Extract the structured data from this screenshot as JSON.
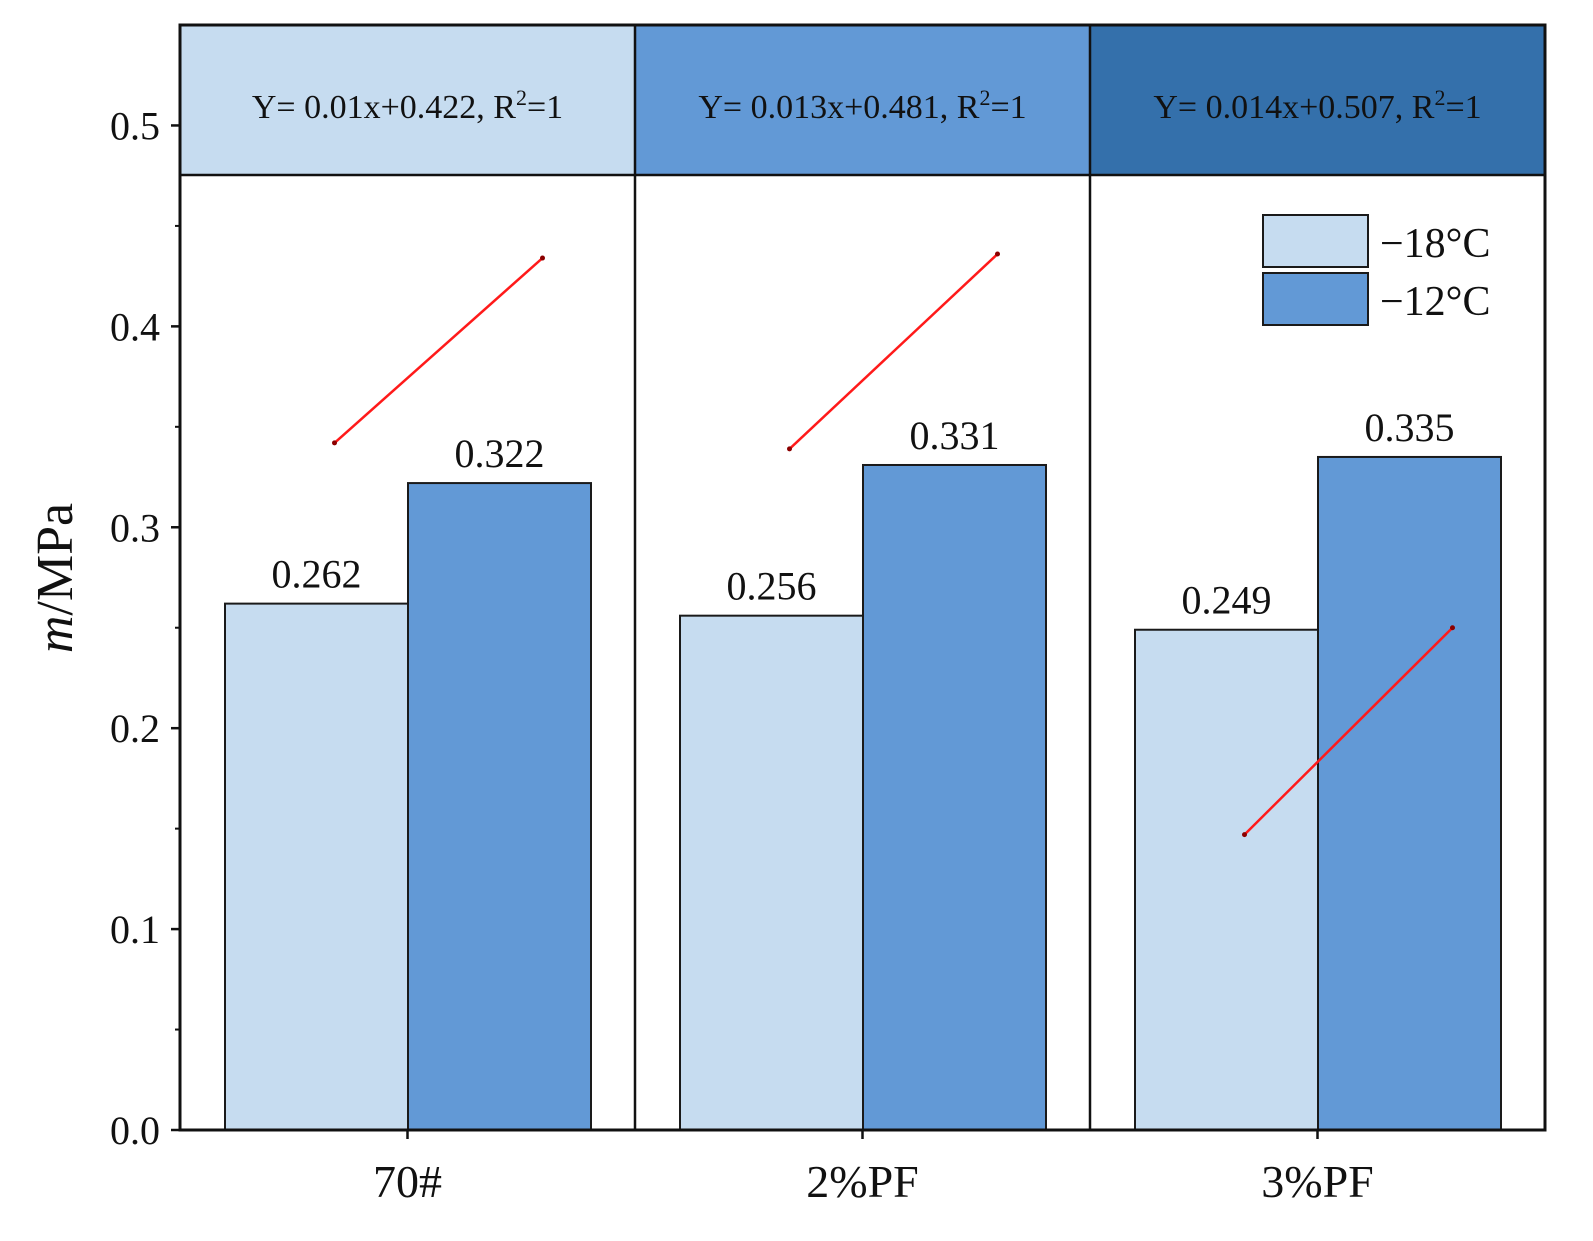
{
  "chart_data": {
    "type": "bar",
    "title": "",
    "xlabel": "",
    "ylabel_italic": "m",
    "ylabel_rest": "/MPa",
    "ylim": [
      0,
      0.55
    ],
    "yticks": [
      "0.0",
      "0.1",
      "0.2",
      "0.3",
      "0.4",
      "0.5"
    ],
    "categories": [
      "70#",
      "2%PF",
      "3%PF"
    ],
    "series": [
      {
        "name": "−18°C",
        "color": "#c6dcf0",
        "values": [
          0.262,
          0.256,
          0.249
        ],
        "labels": [
          "0.262",
          "0.256",
          "0.249"
        ]
      },
      {
        "name": "−12°C",
        "color": "#6299d6",
        "values": [
          0.322,
          0.331,
          0.335
        ],
        "labels": [
          "0.322",
          "0.331",
          "0.335"
        ]
      }
    ],
    "header_colors": [
      "#c6dcf0",
      "#6299d6",
      "#3470ab"
    ],
    "equations": [
      {
        "main": "Y= 0.01x+0.422, R",
        "sup": "2",
        "tail": "=1"
      },
      {
        "main": "Y= 0.013x+0.481, R",
        "sup": "2",
        "tail": "=1"
      },
      {
        "main": "Y= 0.014x+0.507, R",
        "sup": "2",
        "tail": "=1"
      }
    ],
    "fit_lines": [
      {
        "color": "#ff1a1a",
        "y_start": 0.342,
        "y_end": 0.434
      },
      {
        "color": "#ff1a1a",
        "y_start": 0.339,
        "y_end": 0.436
      },
      {
        "color": "#ff1a1a",
        "y_start": 0.147,
        "y_end": 0.25
      }
    ],
    "legend": {
      "position": "top-right",
      "items": [
        "−18°C",
        "−12°C"
      ]
    }
  }
}
